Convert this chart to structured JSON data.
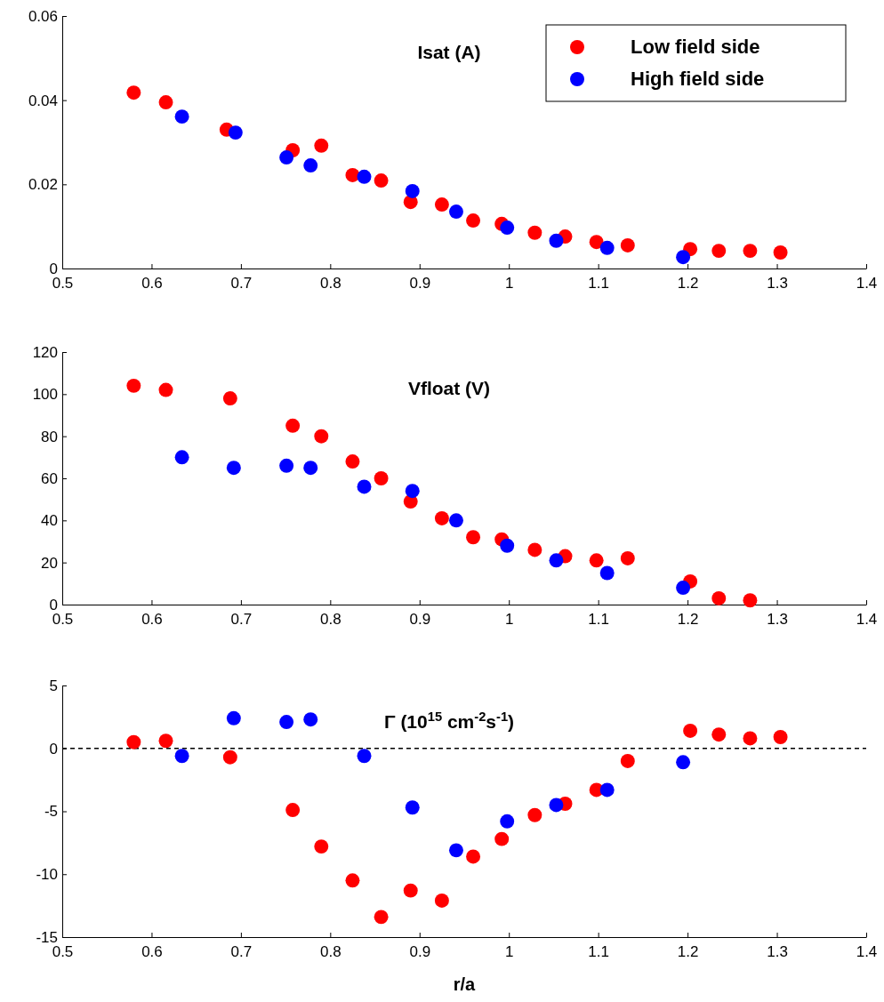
{
  "chart_data": [
    {
      "type": "scatter",
      "title": "Isat (A)",
      "xlim": [
        0.5,
        1.4
      ],
      "xticks": [
        0.5,
        0.6,
        0.7,
        0.8,
        0.9,
        1,
        1.1,
        1.2,
        1.3,
        1.4
      ],
      "ylim": [
        0,
        0.06
      ],
      "yticks": [
        0,
        0.02,
        0.04,
        0.06
      ],
      "marker": "circle",
      "legend": "top right",
      "grid": false,
      "series": [
        {
          "name": "Low field side",
          "color": "#ff0000",
          "x": [
            0.58,
            0.616,
            0.684,
            0.758,
            0.79,
            0.825,
            0.857,
            0.89,
            0.925,
            0.96,
            0.992,
            1.029,
            1.063,
            1.098,
            1.133,
            1.203,
            1.235,
            1.27,
            1.304
          ],
          "values": [
            0.0418,
            0.0395,
            0.033,
            0.0281,
            0.0292,
            0.0222,
            0.0209,
            0.0158,
            0.0152,
            0.0114,
            0.0106,
            0.0085,
            0.0076,
            0.0063,
            0.0055,
            0.0046,
            0.0042,
            0.0042,
            0.0038
          ]
        },
        {
          "name": "High field side",
          "color": "#0000ff",
          "x": [
            0.634,
            0.694,
            0.751,
            0.778,
            0.838,
            0.892,
            0.941,
            0.998,
            1.053,
            1.11,
            1.195
          ],
          "values": [
            0.0361,
            0.0323,
            0.0264,
            0.0245,
            0.0218,
            0.0184,
            0.0135,
            0.0097,
            0.0066,
            0.0049,
            0.0027
          ]
        }
      ]
    },
    {
      "type": "scatter",
      "title": "Vfloat (V)",
      "xlim": [
        0.5,
        1.4
      ],
      "xticks": [
        0.5,
        0.6,
        0.7,
        0.8,
        0.9,
        1,
        1.1,
        1.2,
        1.3,
        1.4
      ],
      "ylim": [
        0,
        120
      ],
      "yticks": [
        0,
        20,
        40,
        60,
        80,
        100,
        120
      ],
      "marker": "circle",
      "grid": false,
      "series": [
        {
          "color": "#ff0000",
          "x": [
            0.58,
            0.616,
            0.688,
            0.758,
            0.79,
            0.825,
            0.857,
            0.89,
            0.925,
            0.96,
            0.992,
            1.029,
            1.063,
            1.098,
            1.133,
            1.203,
            1.235,
            1.27
          ],
          "values": [
            104,
            102,
            98,
            85,
            80,
            68,
            60,
            49,
            41,
            32,
            31,
            26,
            23,
            21,
            22,
            11,
            3,
            2
          ]
        },
        {
          "color": "#0000ff",
          "x": [
            0.634,
            0.692,
            0.751,
            0.778,
            0.838,
            0.892,
            0.941,
            0.998,
            1.053,
            1.11,
            1.195
          ],
          "values": [
            70,
            65,
            66,
            65,
            56,
            54,
            40,
            28,
            21,
            15,
            8
          ]
        }
      ]
    },
    {
      "type": "scatter",
      "title": "Γ (10$^{15}$ cm$^{-2}$s$^{-1}$)",
      "xlabel": "r/a",
      "xlim": [
        0.5,
        1.4
      ],
      "xticks": [
        0.5,
        0.6,
        0.7,
        0.8,
        0.9,
        1,
        1.1,
        1.2,
        1.3,
        1.4
      ],
      "ylim": [
        -15,
        5
      ],
      "yticks": [
        -15,
        -10,
        -5,
        0,
        5
      ],
      "marker": "circle",
      "grid": false,
      "ref_lines": [
        {
          "axis": "y",
          "value": 0,
          "color": "#000000",
          "line_style": "dashed"
        }
      ],
      "series": [
        {
          "color": "#ff0000",
          "x": [
            0.58,
            0.616,
            0.688,
            0.758,
            0.79,
            0.825,
            0.857,
            0.89,
            0.925,
            0.96,
            0.992,
            1.029,
            1.063,
            1.098,
            1.133,
            1.203,
            1.235,
            1.27,
            1.304
          ],
          "values": [
            0.5,
            0.6,
            -0.7,
            -4.9,
            -7.8,
            -10.5,
            -13.4,
            -11.3,
            -12.1,
            -8.6,
            -7.2,
            -5.3,
            -4.4,
            -3.3,
            -1.0,
            1.4,
            1.1,
            0.8,
            0.9
          ]
        },
        {
          "color": "#0000ff",
          "x": [
            0.634,
            0.692,
            0.751,
            0.778,
            0.838,
            0.892,
            0.941,
            0.998,
            1.053,
            1.11,
            1.195
          ],
          "values": [
            -0.6,
            2.4,
            2.1,
            2.3,
            -0.6,
            -4.7,
            -8.1,
            -5.8,
            -4.5,
            -3.3,
            -1.1
          ]
        }
      ]
    }
  ]
}
